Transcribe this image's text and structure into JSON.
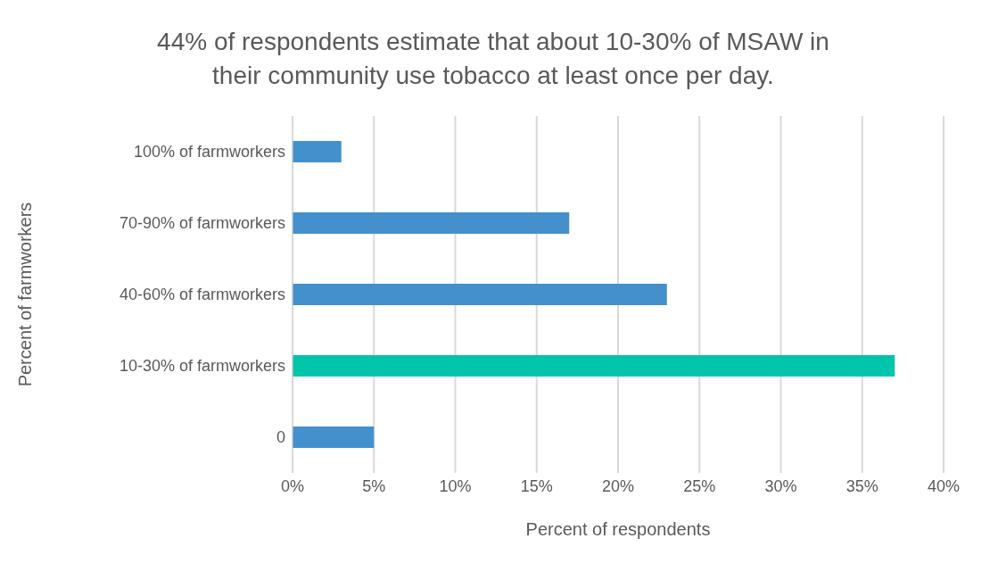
{
  "chart_data": {
    "type": "bar",
    "orientation": "horizontal",
    "title": "44% of respondents estimate that about 10-30% of MSAW in their community use tobacco at least once per day.",
    "xlabel": "Percent of respondents",
    "ylabel": "Percent of farmworkers",
    "categories": [
      "100% of farmworkers",
      "70-90% of farmworkers",
      "40-60% of farmworkers",
      "10-30% of farmworkers",
      "0"
    ],
    "values": [
      3,
      17,
      23,
      37,
      5
    ],
    "colors": [
      "#4390cd",
      "#4390cd",
      "#4390cd",
      "#00c5aa",
      "#4390cd"
    ],
    "xlim": [
      0,
      40
    ],
    "xticks": [
      {
        "value": 0,
        "label": "0%"
      },
      {
        "value": 5,
        "label": "5%"
      },
      {
        "value": 10,
        "label": "10%"
      },
      {
        "value": 15,
        "label": "15%"
      },
      {
        "value": 20,
        "label": "20%"
      },
      {
        "value": 25,
        "label": "25%"
      },
      {
        "value": 30,
        "label": "30%"
      },
      {
        "value": 35,
        "label": "35%"
      },
      {
        "value": 40,
        "label": "40%"
      }
    ],
    "grid": "x"
  }
}
